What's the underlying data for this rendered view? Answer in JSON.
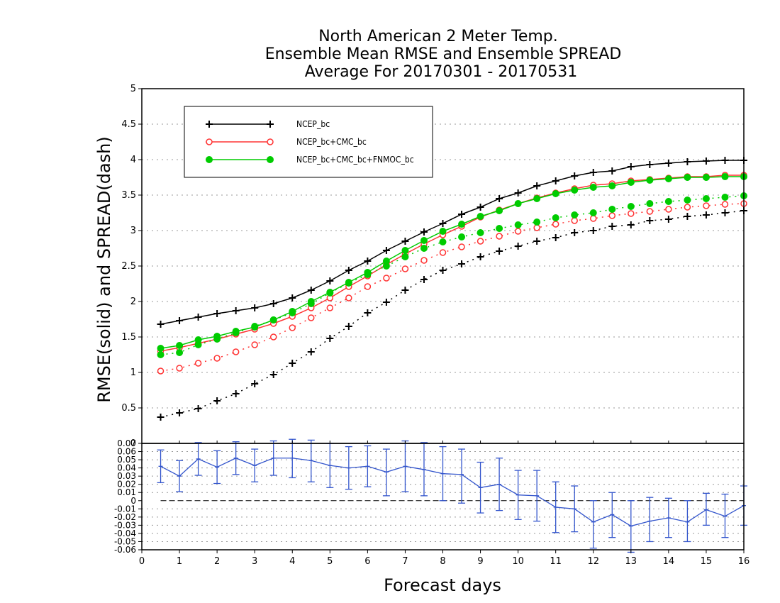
{
  "chart_data": {
    "type": "line",
    "title_lines": [
      "North American 2 Meter Temp.",
      "Ensemble Mean RMSE and Ensemble SPREAD",
      "Average For 20170301 - 20170531"
    ],
    "xlabel": "Forecast days",
    "ylabel": "RMSE(solid) and SPREAD(dash)",
    "xlim": [
      0,
      16
    ],
    "ylim": [
      0,
      5
    ],
    "x_ticks": [
      "0",
      "1",
      "2",
      "3",
      "4",
      "5",
      "6",
      "7",
      "8",
      "9",
      "10",
      "11",
      "12",
      "13",
      "14",
      "15",
      "16"
    ],
    "y_ticks": [
      "0",
      "0.5",
      "1",
      "1.5",
      "2",
      "2.5",
      "3",
      "3.5",
      "4",
      "4.5",
      "5"
    ],
    "grid": true,
    "legend_position": "top-left",
    "legend": [
      "NCEP_bc",
      "NCEP_bc+CMC_bc",
      "NCEP_bc+CMC_bc+FNMOC_bc"
    ],
    "x": [
      0.5,
      1,
      1.5,
      2,
      2.5,
      3,
      3.5,
      4,
      4.5,
      5,
      5.5,
      6,
      6.5,
      7,
      7.5,
      8,
      8.5,
      9,
      9.5,
      10,
      10.5,
      11,
      11.5,
      12,
      12.5,
      13,
      13.5,
      14,
      14.5,
      15,
      15.5,
      16
    ],
    "series": [
      {
        "name": "NCEP_bc",
        "color": "#000000",
        "marker": "plus",
        "rmse": [
          1.68,
          1.73,
          1.78,
          1.83,
          1.87,
          1.91,
          1.97,
          2.05,
          2.16,
          2.29,
          2.44,
          2.57,
          2.72,
          2.85,
          2.98,
          3.1,
          3.23,
          3.33,
          3.45,
          3.53,
          3.63,
          3.7,
          3.77,
          3.82,
          3.84,
          3.9,
          3.93,
          3.95,
          3.97,
          3.98,
          3.99,
          3.99
        ],
        "spread": [
          0.37,
          0.43,
          0.49,
          0.6,
          0.7,
          0.84,
          0.97,
          1.13,
          1.29,
          1.48,
          1.65,
          1.84,
          1.99,
          2.16,
          2.31,
          2.44,
          2.53,
          2.63,
          2.71,
          2.78,
          2.85,
          2.9,
          2.97,
          3.0,
          3.06,
          3.08,
          3.14,
          3.16,
          3.2,
          3.22,
          3.25,
          3.28
        ]
      },
      {
        "name": "NCEP_bc+CMC_bc",
        "color": "#ff3333",
        "marker": "open-circle",
        "rmse": [
          1.3,
          1.35,
          1.41,
          1.47,
          1.54,
          1.61,
          1.69,
          1.79,
          1.91,
          2.05,
          2.21,
          2.36,
          2.52,
          2.67,
          2.81,
          2.94,
          3.06,
          3.19,
          3.29,
          3.38,
          3.46,
          3.53,
          3.59,
          3.64,
          3.66,
          3.7,
          3.72,
          3.74,
          3.76,
          3.76,
          3.78,
          3.78
        ],
        "spread": [
          1.02,
          1.06,
          1.13,
          1.2,
          1.29,
          1.39,
          1.5,
          1.63,
          1.77,
          1.91,
          2.05,
          2.21,
          2.33,
          2.46,
          2.58,
          2.69,
          2.77,
          2.85,
          2.92,
          2.99,
          3.04,
          3.09,
          3.14,
          3.17,
          3.21,
          3.24,
          3.27,
          3.3,
          3.33,
          3.35,
          3.37,
          3.38
        ]
      },
      {
        "name": "NCEP_bc+CMC_bc+FNMOC_bc",
        "color": "#00cc00",
        "marker": "filled-circle",
        "rmse": [
          1.34,
          1.38,
          1.46,
          1.51,
          1.58,
          1.64,
          1.74,
          1.86,
          2.0,
          2.13,
          2.27,
          2.41,
          2.57,
          2.72,
          2.86,
          2.99,
          3.09,
          3.2,
          3.28,
          3.38,
          3.45,
          3.52,
          3.57,
          3.61,
          3.63,
          3.68,
          3.71,
          3.73,
          3.75,
          3.75,
          3.76,
          3.76
        ],
        "spread": [
          1.25,
          1.28,
          1.39,
          1.47,
          1.56,
          1.65,
          1.74,
          1.84,
          1.97,
          2.12,
          2.26,
          2.38,
          2.5,
          2.63,
          2.75,
          2.84,
          2.91,
          2.97,
          3.03,
          3.08,
          3.12,
          3.18,
          3.22,
          3.25,
          3.3,
          3.34,
          3.38,
          3.41,
          3.43,
          3.45,
          3.47,
          3.49
        ]
      }
    ],
    "lower_panel": {
      "type": "line",
      "xlim": [
        0,
        16
      ],
      "ylim": [
        -0.06,
        0.07
      ],
      "y_ticks": [
        "0.07",
        "0.06",
        "0.05",
        "0.04",
        "0.03",
        "0.02",
        "0.01",
        "0",
        "-0.01",
        "-0.02",
        "-0.03",
        "-0.04",
        "-0.05",
        "-0.06"
      ],
      "color": "#3355cc",
      "x": [
        0.5,
        1,
        1.5,
        2,
        2.5,
        3,
        3.5,
        4,
        4.5,
        5,
        5.5,
        6,
        6.5,
        7,
        7.5,
        8,
        8.5,
        9,
        9.5,
        10,
        10.5,
        11,
        11.5,
        12,
        12.5,
        13,
        13.5,
        14,
        14.5,
        15,
        15.5,
        16
      ],
      "values": [
        0.042,
        0.03,
        0.051,
        0.041,
        0.052,
        0.043,
        0.052,
        0.052,
        0.049,
        0.043,
        0.04,
        0.042,
        0.035,
        0.042,
        0.038,
        0.033,
        0.032,
        0.016,
        0.02,
        0.007,
        0.006,
        -0.008,
        -0.01,
        -0.026,
        -0.017,
        -0.031,
        -0.025,
        -0.021,
        -0.026,
        -0.011,
        -0.019,
        -0.006
      ],
      "lower": [
        0.022,
        0.011,
        0.031,
        0.021,
        0.032,
        0.023,
        0.031,
        0.028,
        0.023,
        0.016,
        0.014,
        0.017,
        0.006,
        0.011,
        0.006,
        0.0,
        -0.003,
        -0.015,
        -0.012,
        -0.023,
        -0.025,
        -0.039,
        -0.038,
        -0.058,
        -0.045,
        -0.063,
        -0.05,
        -0.045,
        -0.05,
        -0.03,
        -0.045,
        -0.03
      ],
      "upper": [
        0.062,
        0.049,
        0.071,
        0.061,
        0.072,
        0.063,
        0.073,
        0.075,
        0.074,
        0.07,
        0.066,
        0.067,
        0.063,
        0.073,
        0.071,
        0.066,
        0.063,
        0.047,
        0.052,
        0.037,
        0.037,
        0.023,
        0.018,
        0.0,
        0.01,
        0.0,
        0.004,
        0.003,
        0.0,
        0.009,
        0.008,
        0.018
      ],
      "reference_line": 0
    }
  }
}
